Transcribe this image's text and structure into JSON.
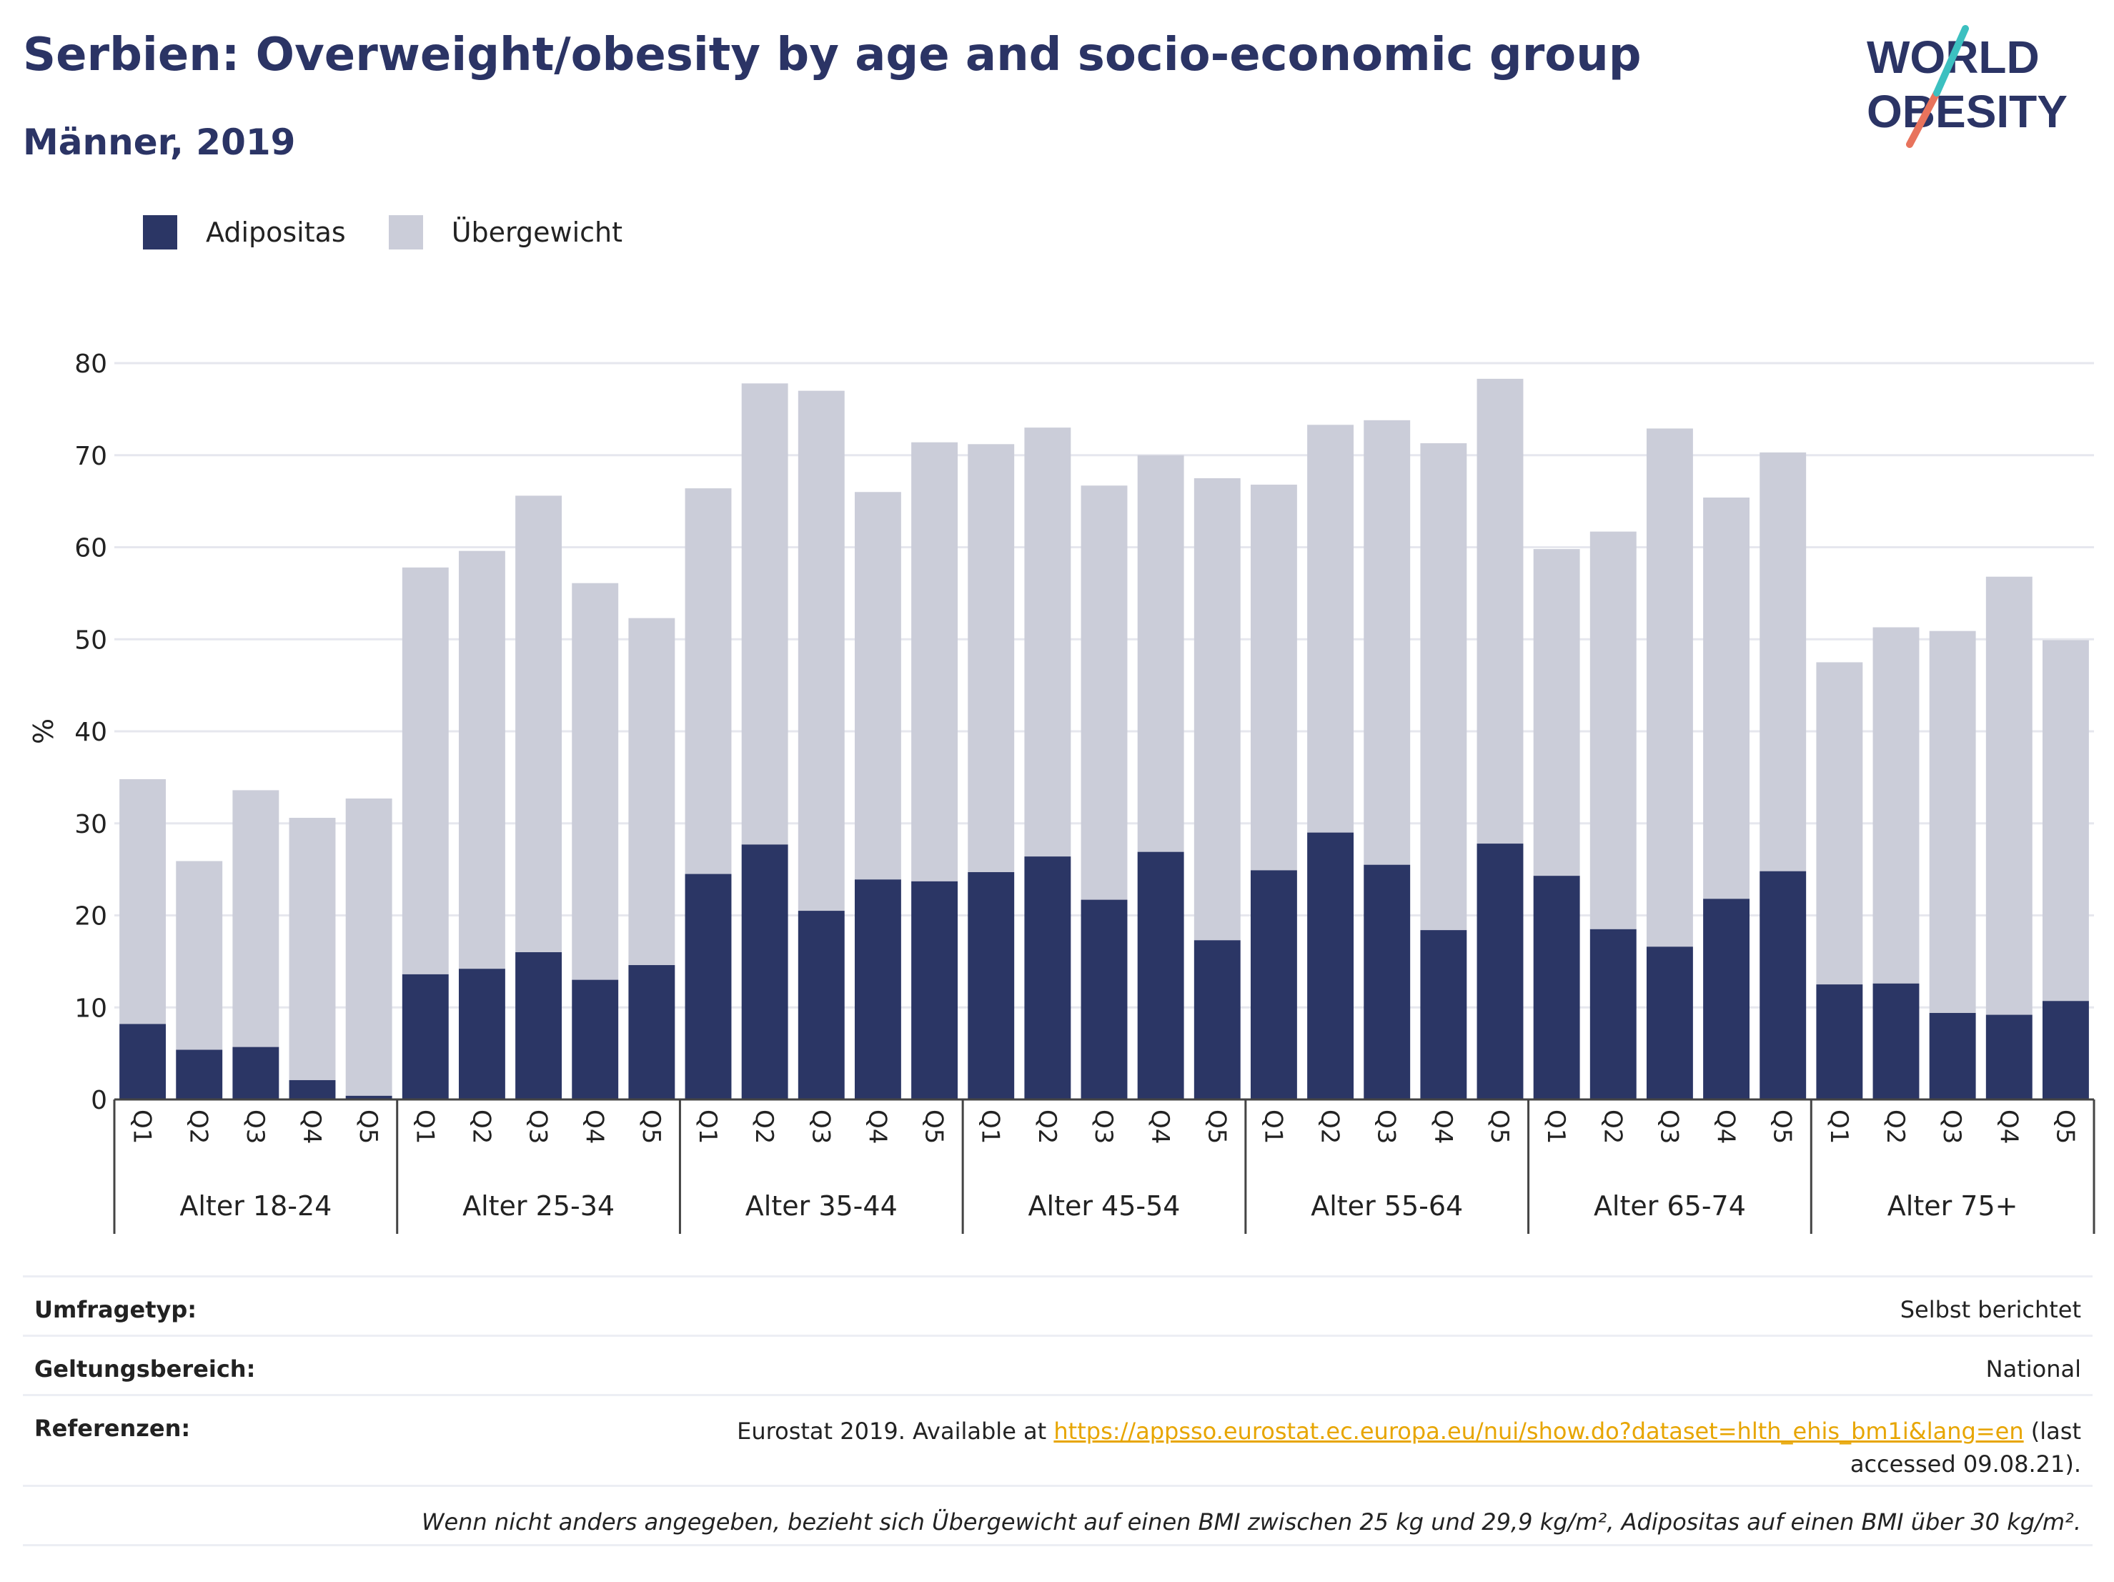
{
  "header": {
    "title": "Serbien: Overweight/obesity by age and socio-economic group",
    "subtitle": "Männer, 2019"
  },
  "logo": {
    "line1": "WORLD",
    "line2": "OBESITY",
    "colors": {
      "text": "#2b3465",
      "accent_teal": "#3cc0c0",
      "accent_red": "#e8735c"
    }
  },
  "legend": {
    "items": [
      {
        "label": "Adipositas",
        "color": "#2b3665"
      },
      {
        "label": "Übergewicht",
        "color": "#cbcdd9"
      }
    ]
  },
  "chart_data": {
    "type": "bar",
    "stacked": true,
    "ylabel": "%",
    "ylim": [
      0,
      80
    ],
    "yticks": [
      0,
      10,
      20,
      30,
      40,
      50,
      60,
      70,
      80
    ],
    "grid": true,
    "legend_position": "top-left",
    "groups": [
      "Alter 18-24",
      "Alter 25-34",
      "Alter 35-44",
      "Alter 45-54",
      "Alter 55-64",
      "Alter 65-74",
      "Alter 75+"
    ],
    "subcategories": [
      "Q1",
      "Q2",
      "Q3",
      "Q4",
      "Q5"
    ],
    "series": [
      {
        "name": "Adipositas",
        "color": "#2b3665",
        "values": [
          8.2,
          5.4,
          5.7,
          2.1,
          0.4,
          13.6,
          14.2,
          16.0,
          13.0,
          14.6,
          24.5,
          27.7,
          20.5,
          23.9,
          23.7,
          24.7,
          26.4,
          21.7,
          26.9,
          17.3,
          24.9,
          29.0,
          25.5,
          18.4,
          27.8,
          24.3,
          18.5,
          16.6,
          21.8,
          24.8,
          12.5,
          12.6,
          9.4,
          9.2,
          10.7
        ]
      },
      {
        "name": "Übergewicht",
        "color": "#cbcdd9",
        "values": [
          26.6,
          20.5,
          27.9,
          28.5,
          32.3,
          44.2,
          45.4,
          49.6,
          43.1,
          37.7,
          41.9,
          50.1,
          56.5,
          42.1,
          47.7,
          46.5,
          46.6,
          45.0,
          43.1,
          50.2,
          41.9,
          44.3,
          48.3,
          52.9,
          50.5,
          35.5,
          43.2,
          56.3,
          43.6,
          45.5,
          35.0,
          38.7,
          41.5,
          47.6,
          39.2
        ]
      }
    ]
  },
  "info": {
    "survey_label": "Umfragetyp:",
    "survey_value": "Selbst berichtet",
    "scope_label": "Geltungsbereich:",
    "scope_value": "National",
    "refs_label": "Referenzen:",
    "refs_prefix": "Eurostat 2019. Available at ",
    "refs_link": "https://appsso.eurostat.ec.europa.eu/nui/show.do?dataset=hlth_ehis_bm1i&lang=en",
    "refs_suffix": " (last accessed 09.08.21).",
    "note": "Wenn nicht anders angegeben, bezieht sich Übergewicht auf einen BMI zwischen 25 kg und 29,9 kg/m², Adipositas auf einen BMI über 30 kg/m²."
  }
}
